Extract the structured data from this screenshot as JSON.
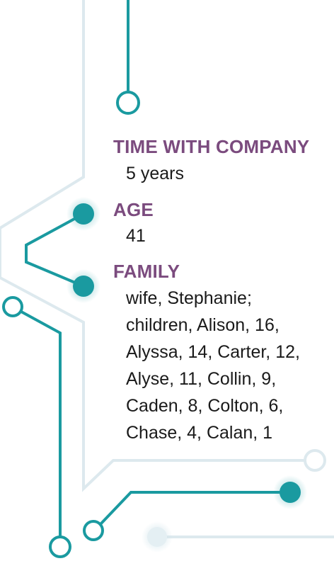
{
  "profile": {
    "time_with_company_label": "TIME WITH COMPANY",
    "time_with_company_value": "5 years",
    "age_label": "AGE",
    "age_value": "41",
    "family_label": "FAMILY",
    "family_lines": [
      "wife, Stephanie;",
      "children, Alison, 16,",
      "Alyssa, 14, Carter, 12,",
      "Alyse, 11, Collin, 9,",
      "Caden, 8, Colton, 6,",
      "Chase, 4, Calan, 1"
    ]
  },
  "colors": {
    "teal": "#1a9aa0",
    "light_blue": "#dde9ee",
    "label_purple": "#7b4b7e",
    "text": "#1a1a1a"
  }
}
